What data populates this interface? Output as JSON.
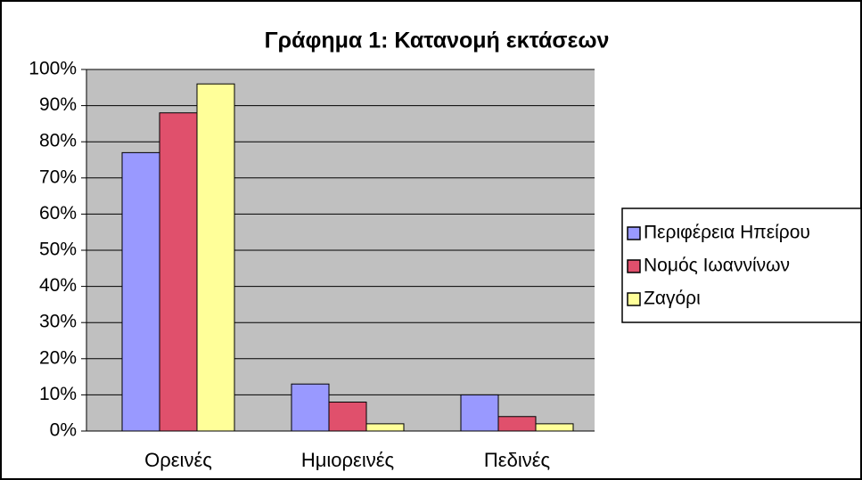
{
  "chart_data": {
    "type": "bar",
    "title": "Γράφημα 1: Κατανομή εκτάσεων",
    "categories": [
      "Ορεινές",
      "Ημιορεινές",
      "Πεδινές"
    ],
    "series": [
      {
        "name": "Περιφέρεια Ηπείρου",
        "color": "#9999ff",
        "values": [
          77,
          13,
          10
        ]
      },
      {
        "name": "Νομός Ιωαννίνων",
        "color": "#e0506c",
        "values": [
          88,
          8,
          4
        ]
      },
      {
        "name": "Ζαγόρι",
        "color": "#ffff99",
        "values": [
          96,
          2,
          2
        ]
      }
    ],
    "ylim": [
      0,
      100
    ],
    "yticks": [
      {
        "value": 0,
        "label": "0%"
      },
      {
        "value": 10,
        "label": "10%"
      },
      {
        "value": 20,
        "label": "20%"
      },
      {
        "value": 30,
        "label": "30%"
      },
      {
        "value": 40,
        "label": "40%"
      },
      {
        "value": 50,
        "label": "50%"
      },
      {
        "value": 60,
        "label": "60%"
      },
      {
        "value": 70,
        "label": "70%"
      },
      {
        "value": 80,
        "label": "80%"
      },
      {
        "value": 90,
        "label": "90%"
      },
      {
        "value": 100,
        "label": "100%"
      }
    ],
    "grid": true,
    "legend": "right"
  }
}
